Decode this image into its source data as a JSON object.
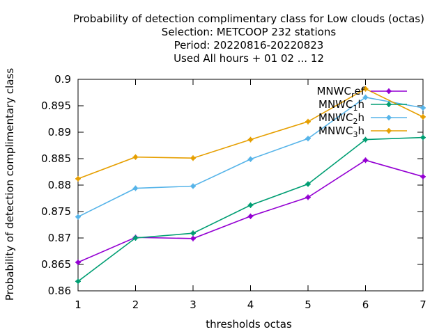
{
  "title_lines": [
    "Probability of detection complimentary class  for Low clouds (octas)",
    "Selection: METCOOP    232 stations",
    "Period: 20220816-20220823",
    "Used  All hours + 01 02 ... 12"
  ],
  "chart_data": {
    "type": "line",
    "xlabel": "thresholds octas",
    "ylabel": "Probability of detection complimentary class",
    "x": [
      1,
      2,
      3,
      4,
      5,
      6,
      7
    ],
    "xlim": [
      1,
      7
    ],
    "ylim": [
      0.86,
      0.9
    ],
    "xticks": [
      "1",
      "2",
      "3",
      "4",
      "5",
      "6",
      "7"
    ],
    "yticks": [
      "0.86",
      "0.865",
      "0.87",
      "0.875",
      "0.88",
      "0.885",
      "0.89",
      "0.895",
      "0.9"
    ],
    "grid": false,
    "legend_position": "top-right",
    "series": [
      {
        "name": "MNWC_ref",
        "label_base": "MNWC",
        "label_sub": "r",
        "label_rest": "ef",
        "color": "#9400d3",
        "values": [
          0.8654,
          0.8701,
          0.8699,
          0.8741,
          0.8777,
          0.8847,
          0.8816
        ]
      },
      {
        "name": "MNWC_1h",
        "label_base": "MNWC",
        "label_sub": "1",
        "label_rest": "h",
        "color": "#009e73",
        "values": [
          0.8618,
          0.87,
          0.8709,
          0.8762,
          0.8802,
          0.8886,
          0.889
        ]
      },
      {
        "name": "MNWC_2h",
        "label_base": "MNWC",
        "label_sub": "2",
        "label_rest": "h",
        "color": "#56b4e9",
        "values": [
          0.874,
          0.8794,
          0.8798,
          0.8849,
          0.8888,
          0.8966,
          0.8946
        ]
      },
      {
        "name": "MNWC_3h",
        "label_base": "MNWC",
        "label_sub": "3",
        "label_rest": "h",
        "color": "#e69f00",
        "values": [
          0.8812,
          0.8853,
          0.8851,
          0.8886,
          0.892,
          0.8982,
          0.8929
        ]
      }
    ]
  }
}
